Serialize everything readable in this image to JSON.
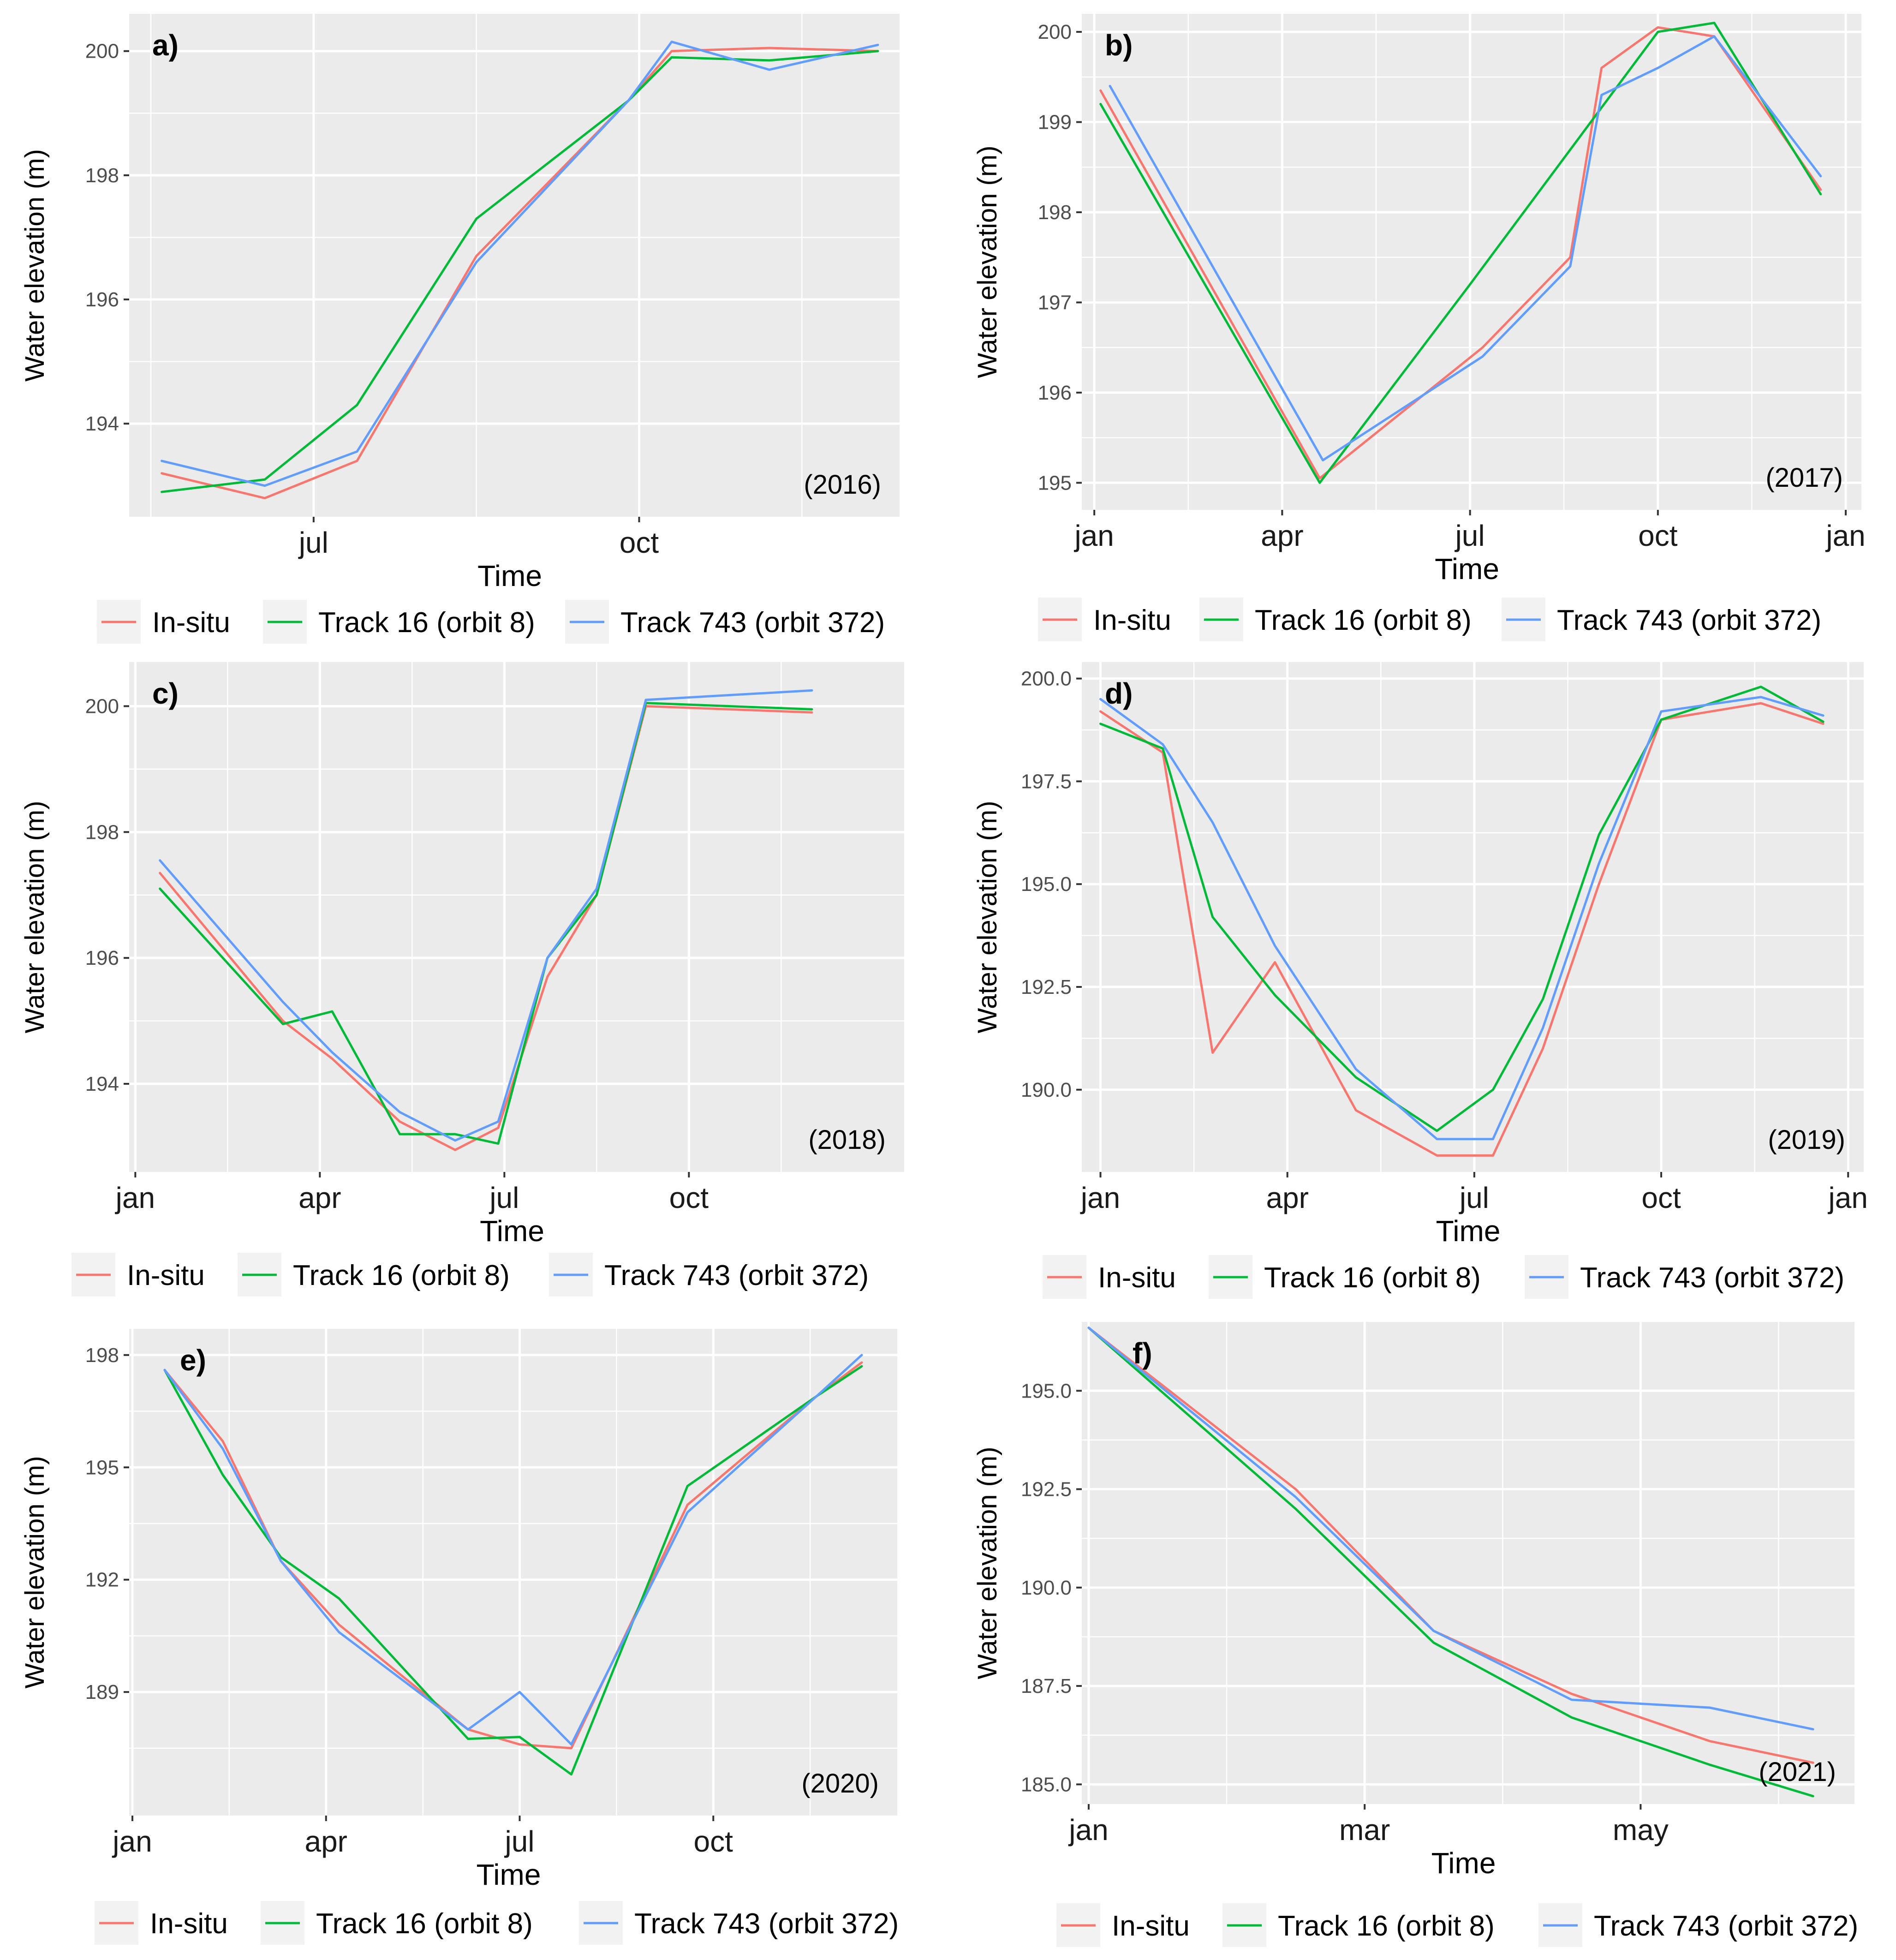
{
  "ylabel": "Water elevation (m)",
  "xlabel": "Time",
  "colors": {
    "insitu": "#F8766D",
    "track16": "#00BA38",
    "track743": "#619CFF"
  },
  "legend": [
    "In-situ",
    "Track 16 (orbit 8)",
    "Track 743 (orbit 372)"
  ],
  "chart_data": [
    {
      "type": "line",
      "panel": "a)",
      "year": "(2016)",
      "xlabel": "Time",
      "ylabel": "Water elevation (m)",
      "xlim": [
        5.3,
        12.4
      ],
      "ylim": [
        192.5,
        200.6
      ],
      "yticks": [
        {
          "v": 194,
          "label": "194"
        },
        {
          "v": 196,
          "label": "196"
        },
        {
          "v": 198,
          "label": "198"
        },
        {
          "v": 200,
          "label": "200"
        }
      ],
      "yminor": [
        195,
        197,
        199
      ],
      "xticks": [
        {
          "v": 7,
          "label": "jul"
        },
        {
          "v": 10,
          "label": "oct"
        }
      ],
      "xminor": [
        5.5,
        8.5,
        11.5
      ],
      "series": [
        {
          "name": "In-situ",
          "x": [
            5.6,
            6.55,
            7.4,
            8.5,
            9.9,
            10.3,
            11.2,
            12.2
          ],
          "y": [
            193.2,
            192.8,
            193.4,
            196.7,
            199.2,
            200.0,
            200.05,
            200.0
          ]
        },
        {
          "name": "Track 16 (orbit 8)",
          "x": [
            5.6,
            6.55,
            7.4,
            8.5,
            9.9,
            10.3,
            11.2,
            12.2
          ],
          "y": [
            192.9,
            193.1,
            194.3,
            197.3,
            199.2,
            199.9,
            199.85,
            200.0
          ]
        },
        {
          "name": "Track 743 (orbit 372)",
          "x": [
            5.6,
            6.55,
            7.4,
            8.5,
            9.9,
            10.3,
            11.2,
            12.2
          ],
          "y": [
            193.4,
            193.0,
            193.55,
            196.6,
            199.2,
            200.15,
            199.7,
            200.1
          ]
        }
      ]
    },
    {
      "type": "line",
      "panel": "b)",
      "year": "(2017)",
      "xlabel": "Time",
      "ylabel": "Water elevation (m)",
      "xlim": [
        0.8,
        13.25
      ],
      "ylim": [
        194.7,
        200.2
      ],
      "yticks": [
        {
          "v": 195,
          "label": "195"
        },
        {
          "v": 196,
          "label": "196"
        },
        {
          "v": 197,
          "label": "197"
        },
        {
          "v": 198,
          "label": "198"
        },
        {
          "v": 199,
          "label": "199"
        },
        {
          "v": 200,
          "label": "200"
        }
      ],
      "yminor": [
        195.5,
        196.5,
        197.5,
        198.5,
        199.5
      ],
      "xticks": [
        {
          "v": 1,
          "label": "jan"
        },
        {
          "v": 4,
          "label": "apr"
        },
        {
          "v": 7,
          "label": "jul"
        },
        {
          "v": 10,
          "label": "oct"
        },
        {
          "v": 13,
          "label": "jan"
        }
      ],
      "xminor": [
        2.5,
        5.5,
        8.5,
        11.5
      ],
      "series": [
        {
          "name": "In-situ",
          "x": [
            1.1,
            4.6,
            7.2,
            8.6,
            9.1,
            10.0,
            10.9,
            12.6
          ],
          "y": [
            199.35,
            195.05,
            196.5,
            197.5,
            199.6,
            200.05,
            199.95,
            198.25
          ]
        },
        {
          "name": "Track 16 (orbit 8)",
          "x": [
            1.1,
            4.6,
            7.0,
            10.0,
            10.9,
            12.6
          ],
          "y": [
            199.2,
            195.0,
            197.2,
            200.0,
            200.1,
            198.2
          ]
        },
        {
          "name": "Track 743 (orbit 372)",
          "x": [
            1.25,
            4.65,
            7.2,
            8.6,
            9.1,
            10.0,
            10.9,
            12.6
          ],
          "y": [
            199.4,
            195.25,
            196.4,
            197.4,
            199.3,
            199.6,
            199.95,
            198.4
          ]
        }
      ]
    },
    {
      "type": "line",
      "panel": "c)",
      "year": "(2018)",
      "xlabel": "Time",
      "ylabel": "Water elevation (m)",
      "xlim": [
        0.9,
        13.5
      ],
      "ylim": [
        192.6,
        200.7
      ],
      "yticks": [
        {
          "v": 194,
          "label": "194"
        },
        {
          "v": 196,
          "label": "196"
        },
        {
          "v": 198,
          "label": "198"
        },
        {
          "v": 200,
          "label": "200"
        }
      ],
      "yminor": [
        195,
        197,
        199
      ],
      "xticks": [
        {
          "v": 1,
          "label": "jan"
        },
        {
          "v": 4,
          "label": "apr"
        },
        {
          "v": 7,
          "label": "jul"
        },
        {
          "v": 10,
          "label": "oct"
        }
      ],
      "xminor": [
        2.5,
        5.5,
        8.5,
        11.5
      ],
      "series": [
        {
          "name": "In-situ",
          "x": [
            1.4,
            3.4,
            4.2,
            5.3,
            6.2,
            6.9,
            7.7,
            8.5,
            9.3,
            12.0
          ],
          "y": [
            197.35,
            195.0,
            194.4,
            193.4,
            192.95,
            193.3,
            195.7,
            197.0,
            200.0,
            199.9
          ]
        },
        {
          "name": "Track 16 (orbit 8)",
          "x": [
            1.4,
            3.4,
            4.2,
            5.3,
            6.2,
            6.9,
            7.7,
            8.5,
            9.3,
            12.0
          ],
          "y": [
            197.1,
            194.95,
            195.15,
            193.2,
            193.2,
            193.05,
            196.0,
            197.0,
            200.05,
            199.95
          ]
        },
        {
          "name": "Track 743 (orbit 372)",
          "x": [
            1.4,
            3.4,
            4.2,
            5.3,
            6.2,
            6.9,
            7.7,
            8.5,
            9.3,
            12.0
          ],
          "y": [
            197.55,
            195.3,
            194.5,
            193.55,
            193.1,
            193.4,
            196.0,
            197.1,
            200.1,
            200.25
          ]
        }
      ]
    },
    {
      "type": "line",
      "panel": "d)",
      "year": "(2019)",
      "xlabel": "Time",
      "ylabel": "Water elevation (m)",
      "xlim": [
        0.7,
        13.25
      ],
      "ylim": [
        188.0,
        200.4
      ],
      "yticks": [
        {
          "v": 190.0,
          "label": "190.0"
        },
        {
          "v": 192.5,
          "label": "192.5"
        },
        {
          "v": 195.0,
          "label": "195.0"
        },
        {
          "v": 197.5,
          "label": "197.5"
        },
        {
          "v": 200.0,
          "label": "200.0"
        }
      ],
      "yminor": [
        191.25,
        193.75,
        196.25,
        198.75
      ],
      "xticks": [
        {
          "v": 1,
          "label": "jan"
        },
        {
          "v": 4,
          "label": "apr"
        },
        {
          "v": 7,
          "label": "jul"
        },
        {
          "v": 10,
          "label": "oct"
        },
        {
          "v": 13,
          "label": "jan"
        }
      ],
      "xminor": [
        2.5,
        5.5,
        8.5,
        11.5
      ],
      "series": [
        {
          "name": "In-situ",
          "x": [
            1.0,
            2.0,
            2.8,
            3.8,
            5.1,
            6.4,
            7.3,
            8.1,
            9.0,
            10.0,
            11.6,
            12.6
          ],
          "y": [
            199.2,
            198.2,
            190.9,
            193.1,
            189.5,
            188.4,
            188.4,
            191.0,
            195.0,
            199.0,
            199.4,
            198.9
          ]
        },
        {
          "name": "Track 16 (orbit 8)",
          "x": [
            1.0,
            2.0,
            2.8,
            3.8,
            5.1,
            6.4,
            7.3,
            8.1,
            9.0,
            10.0,
            11.6,
            12.6
          ],
          "y": [
            198.9,
            198.3,
            194.2,
            192.3,
            190.3,
            189.0,
            190.0,
            192.2,
            196.2,
            199.0,
            199.8,
            198.95
          ]
        },
        {
          "name": "Track 743 (orbit 372)",
          "x": [
            1.0,
            2.0,
            2.8,
            3.8,
            5.1,
            6.4,
            7.3,
            8.1,
            9.0,
            10.0,
            11.6,
            12.6
          ],
          "y": [
            199.5,
            198.4,
            196.5,
            193.5,
            190.5,
            188.8,
            188.8,
            191.5,
            195.5,
            199.2,
            199.55,
            199.1
          ]
        }
      ]
    },
    {
      "type": "line",
      "panel": "e)",
      "year": "(2020)",
      "xlabel": "Time",
      "ylabel": "Water elevation (m)",
      "xlim": [
        0.95,
        12.85
      ],
      "ylim": [
        185.7,
        198.7
      ],
      "yticks": [
        {
          "v": 189,
          "label": "189"
        },
        {
          "v": 192,
          "label": "192"
        },
        {
          "v": 195,
          "label": "195"
        },
        {
          "v": 198,
          "label": "198"
        }
      ],
      "yminor": [
        187.5,
        190.5,
        193.5,
        196.5
      ],
      "xticks": [
        {
          "v": 1,
          "label": "jan"
        },
        {
          "v": 4,
          "label": "apr"
        },
        {
          "v": 7,
          "label": "jul"
        },
        {
          "v": 10,
          "label": "oct"
        }
      ],
      "xminor": [
        2.5,
        5.5,
        8.5,
        11.5
      ],
      "series": [
        {
          "name": "In-situ",
          "x": [
            1.5,
            2.4,
            3.3,
            4.2,
            6.2,
            7.0,
            7.8,
            9.6,
            11.6,
            12.3
          ],
          "y": [
            197.6,
            195.7,
            192.5,
            190.8,
            188.0,
            187.6,
            187.5,
            194.0,
            196.9,
            197.8
          ]
        },
        {
          "name": "Track 16 (orbit 8)",
          "x": [
            1.5,
            2.4,
            3.3,
            4.2,
            6.2,
            7.0,
            7.8,
            9.6,
            11.6,
            12.3
          ],
          "y": [
            197.6,
            194.8,
            192.6,
            191.5,
            187.75,
            187.8,
            186.8,
            194.5,
            196.9,
            197.7
          ]
        },
        {
          "name": "Track 743 (orbit 372)",
          "x": [
            1.5,
            2.4,
            3.3,
            4.2,
            6.2,
            7.0,
            7.8,
            9.6,
            11.6,
            12.3
          ],
          "y": [
            197.6,
            195.5,
            192.5,
            190.6,
            188.0,
            189.0,
            187.6,
            193.8,
            196.9,
            198.0
          ]
        }
      ]
    },
    {
      "type": "line",
      "panel": "f)",
      "year": "(2021)",
      "xlabel": "Time",
      "ylabel": "Water elevation (m)",
      "xlim": [
        0.95,
        6.55
      ],
      "ylim": [
        184.5,
        196.75
      ],
      "yticks": [
        {
          "v": 185.0,
          "label": "185.0"
        },
        {
          "v": 187.5,
          "label": "187.5"
        },
        {
          "v": 190.0,
          "label": "190.0"
        },
        {
          "v": 192.5,
          "label": "192.5"
        },
        {
          "v": 195.0,
          "label": "195.0"
        }
      ],
      "yminor": [
        186.25,
        188.75,
        191.25,
        193.75
      ],
      "xticks": [
        {
          "v": 1,
          "label": "jan"
        },
        {
          "v": 3,
          "label": "mar"
        },
        {
          "v": 5,
          "label": "may"
        }
      ],
      "xminor": [
        2,
        4,
        6
      ],
      "series": [
        {
          "name": "In-situ",
          "x": [
            1.0,
            2.5,
            3.5,
            4.5,
            5.5,
            6.25
          ],
          "y": [
            196.6,
            192.5,
            188.9,
            187.3,
            186.1,
            185.55
          ]
        },
        {
          "name": "Track 16 (orbit 8)",
          "x": [
            1.0,
            2.5,
            3.5,
            4.5,
            5.5,
            6.25
          ],
          "y": [
            196.6,
            192.0,
            188.6,
            186.7,
            185.5,
            184.7
          ]
        },
        {
          "name": "Track 743 (orbit 372)",
          "x": [
            1.0,
            2.5,
            3.5,
            4.5,
            5.5,
            6.25
          ],
          "y": [
            196.6,
            192.3,
            188.9,
            187.15,
            186.95,
            186.4
          ]
        }
      ]
    }
  ]
}
